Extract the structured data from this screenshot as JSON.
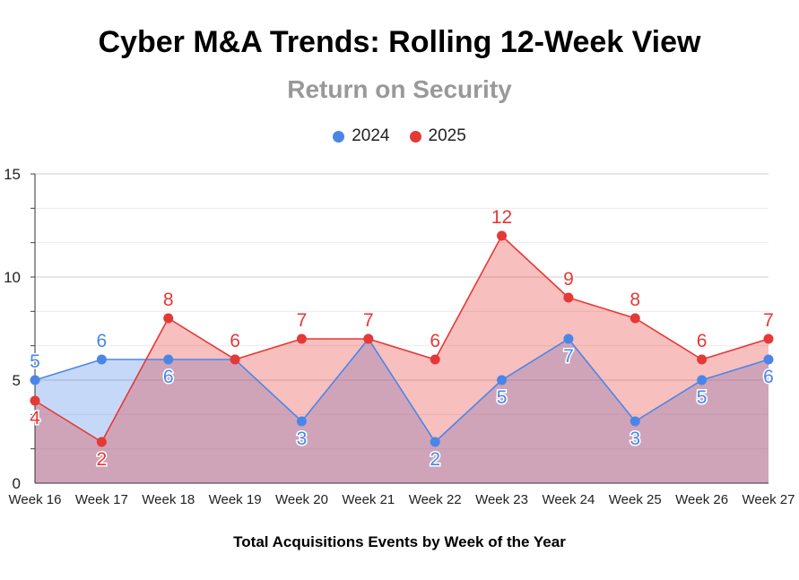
{
  "chart_data": {
    "type": "area",
    "title": "Cyber M&A Trends: Rolling 12-Week View",
    "subtitle": "Return on Security",
    "xlabel": "Total Acquisitions Events by Week of the Year",
    "ylabel": "",
    "categories": [
      "Week 16",
      "Week 17",
      "Week 18",
      "Week 19",
      "Week 20",
      "Week 21",
      "Week 22",
      "Week 23",
      "Week 24",
      "Week 25",
      "Week 26",
      "Week 27"
    ],
    "ylim": [
      0,
      15
    ],
    "yticks": [
      0,
      5,
      10,
      15
    ],
    "grid": true,
    "legend": "top-center",
    "series": [
      {
        "name": "2024",
        "color": "#4a86e8",
        "values": [
          5,
          6,
          6,
          6,
          3,
          7,
          2,
          5,
          7,
          3,
          5,
          6
        ]
      },
      {
        "name": "2025",
        "color": "#e53935",
        "values": [
          4,
          2,
          8,
          6,
          7,
          7,
          6,
          12,
          9,
          8,
          6,
          7
        ]
      }
    ]
  }
}
